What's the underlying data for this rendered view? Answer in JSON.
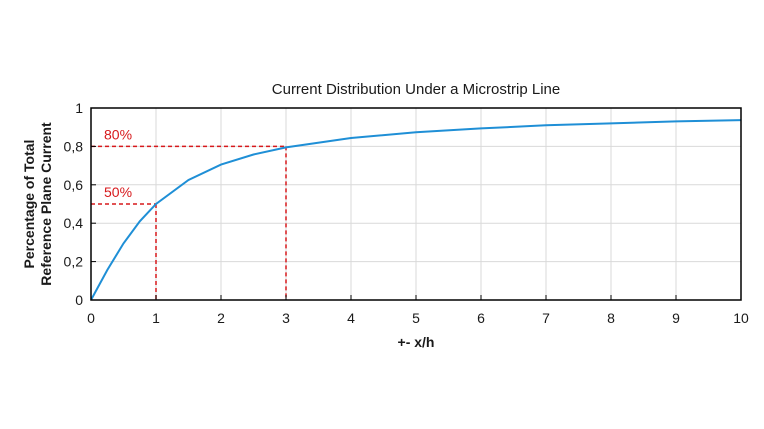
{
  "chart_data": {
    "type": "line",
    "title": "Current Distribution Under a Microstrip Line",
    "xlabel": "+- x/h",
    "ylabel": [
      "Percentage of Total",
      "Reference Plane Current"
    ],
    "xlim": [
      0,
      10
    ],
    "ylim": [
      0,
      1
    ],
    "xticks": [
      "0",
      "1",
      "2",
      "3",
      "4",
      "5",
      "6",
      "7",
      "8",
      "9",
      "10"
    ],
    "yticks": [
      "0",
      "0,2",
      "0,4",
      "0,6",
      "0,8",
      "1"
    ],
    "grid": true,
    "line_color": "#1f8fd6",
    "annotation_color": "#d7191c",
    "series": [
      {
        "x": [
          0,
          0.25,
          0.5,
          0.75,
          1,
          1.5,
          2,
          2.5,
          3,
          4,
          5,
          6,
          7,
          8,
          9,
          10
        ],
        "y": [
          0,
          0.156,
          0.295,
          0.41,
          0.5,
          0.625,
          0.705,
          0.758,
          0.795,
          0.844,
          0.874,
          0.894,
          0.91,
          0.92,
          0.93,
          0.937
        ]
      }
    ],
    "annotations": [
      {
        "label": "50%",
        "x": 1,
        "y": 0.5
      },
      {
        "label": "80%",
        "x": 3,
        "y": 0.8
      }
    ]
  }
}
